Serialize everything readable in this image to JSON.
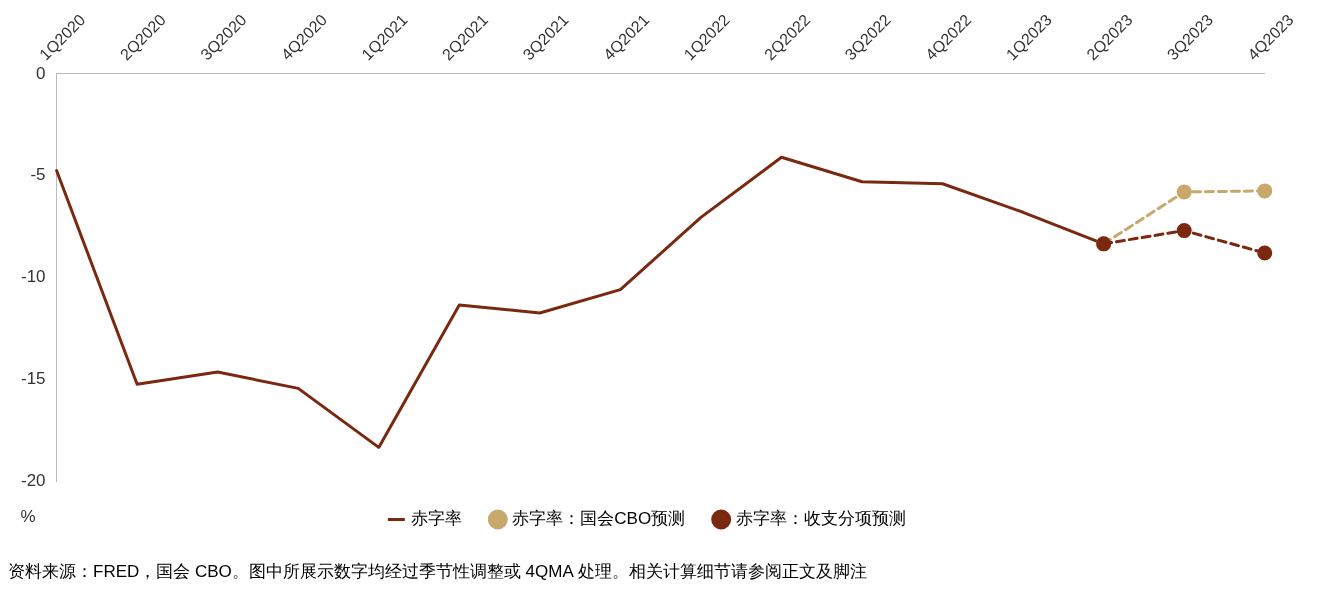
{
  "chart_data": {
    "type": "line",
    "categories": [
      "1Q2020",
      "2Q2020",
      "3Q2020",
      "4Q2020",
      "1Q2021",
      "2Q2021",
      "3Q2021",
      "4Q2021",
      "1Q2022",
      "2Q2022",
      "3Q2022",
      "4Q2022",
      "1Q2023",
      "2Q2023",
      "3Q2023",
      "4Q2023"
    ],
    "series": [
      {
        "name": "赤字率",
        "color": "#7b2810",
        "line_style": "solid",
        "marker": "none",
        "values": [
          -4.75,
          -15.25,
          -14.65,
          -15.45,
          -18.35,
          -11.35,
          -11.75,
          -10.6,
          -7.05,
          -4.1,
          -5.3,
          -5.4,
          -6.8,
          -8.35,
          null,
          null
        ]
      },
      {
        "name": "赤字率：国会CBO预测",
        "color": "#c8a86b",
        "line_style": "dashed",
        "marker": "circle",
        "values": [
          null,
          null,
          null,
          null,
          null,
          null,
          null,
          null,
          null,
          null,
          null,
          null,
          null,
          -8.35,
          -5.8,
          -5.75
        ]
      },
      {
        "name": "赤字率：收支分项预测",
        "color": "#7b2810",
        "line_style": "dashed",
        "marker": "circle",
        "values": [
          null,
          null,
          null,
          null,
          null,
          null,
          null,
          null,
          null,
          null,
          null,
          null,
          null,
          -8.35,
          -7.7,
          -8.8
        ]
      }
    ],
    "ylabel": "%",
    "ylim": [
      -20,
      0
    ],
    "yticks": [
      -20,
      -15,
      -10,
      -5,
      0
    ],
    "grid": false,
    "legend": "bottom",
    "annotations": [
      "资料来源：FRED，国会 CBO。图中所展示数字均经过季节性调整或 4QMA 处理。相关计算细节请参阅正文及脚注"
    ]
  }
}
